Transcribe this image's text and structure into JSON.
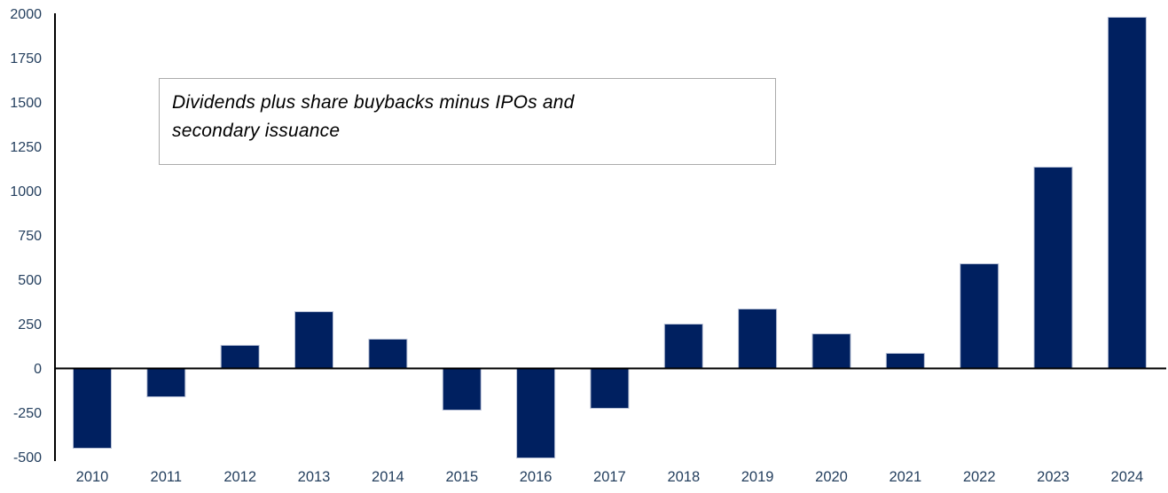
{
  "chart_data": {
    "type": "bar",
    "title": "",
    "xlabel": "",
    "ylabel": "",
    "annotation": "Dividends plus share buybacks minus IPOs and secondary issuance",
    "annotation_lines": [
      "Dividends plus share buybacks minus IPOs and",
      "secondary issuance"
    ],
    "categories": [
      "2010",
      "2011",
      "2012",
      "2013",
      "2014",
      "2015",
      "2016",
      "2017",
      "2018",
      "2019",
      "2020",
      "2021",
      "2022",
      "2023",
      "2024"
    ],
    "values": [
      -450,
      -160,
      130,
      320,
      165,
      -235,
      -505,
      -225,
      250,
      335,
      195,
      85,
      590,
      1135,
      1980
    ],
    "ylim": [
      -500,
      2000
    ],
    "ytick_step": 250,
    "yticks": [
      2000,
      1750,
      1500,
      1250,
      1000,
      750,
      500,
      250,
      0,
      -250,
      -500
    ],
    "grid": false,
    "legend_position": "none",
    "bar_color": "#002060",
    "bar_border_color": "#B7C0D6",
    "tick_label_color": "#243F5E",
    "axis_color": "#000000",
    "annotation_border_color": "#ABABAB",
    "annotation_text_color": "#000000"
  }
}
